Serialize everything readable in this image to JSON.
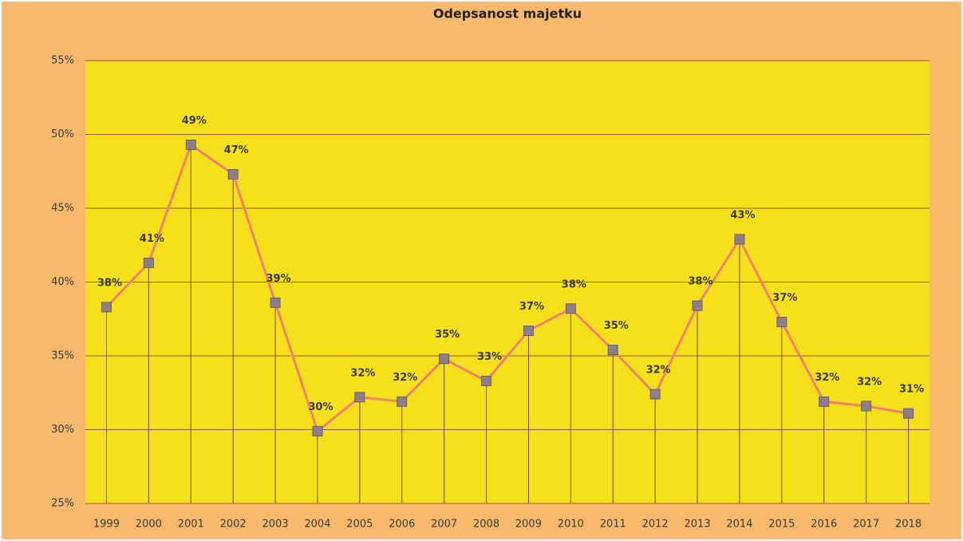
{
  "chart_data": {
    "type": "line",
    "title": "Odepsanost majetku",
    "categories": [
      "1999",
      "2000",
      "2001",
      "2002",
      "2003",
      "2004",
      "2005",
      "2006",
      "2007",
      "2008",
      "2009",
      "2010",
      "2011",
      "2012",
      "2013",
      "2014",
      "2015",
      "2016",
      "2017",
      "2018"
    ],
    "values": [
      38.3,
      41.3,
      49.3,
      47.3,
      38.6,
      29.9,
      32.2,
      31.9,
      34.8,
      33.3,
      36.7,
      38.2,
      35.4,
      32.4,
      38.4,
      42.9,
      37.3,
      31.9,
      31.6,
      31.1
    ],
    "value_labels": [
      "38%",
      "41%",
      "49%",
      "47%",
      "39%",
      "30%",
      "32%",
      "32%",
      "35%",
      "33%",
      "37%",
      "38%",
      "35%",
      "32%",
      "38%",
      "43%",
      "37%",
      "32%",
      "32%",
      "31%"
    ],
    "color": "#f0826a",
    "marker_color": "#8c7f8a",
    "drop_lines": true,
    "ylim": [
      25,
      55
    ],
    "yticks": [
      {
        "value": 25,
        "label": "25%"
      },
      {
        "value": 30,
        "label": "30%"
      },
      {
        "value": 35,
        "label": "35%"
      },
      {
        "value": 40,
        "label": "40%"
      },
      {
        "value": 45,
        "label": "45%"
      },
      {
        "value": 50,
        "label": "50%"
      },
      {
        "value": 55,
        "label": "55%"
      }
    ],
    "grid": true
  }
}
